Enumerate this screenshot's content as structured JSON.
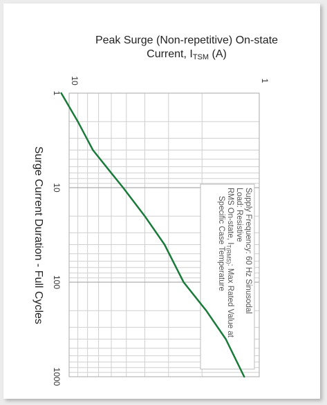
{
  "chart_data": {
    "type": "line",
    "title_line1": "Peak Surge (Non-repetitive) On-state",
    "title_line2_main": "Current, I",
    "title_line2_sub": "TSM",
    "title_line2_unit": " (A)",
    "ylabel": "Surge Current Duration - Full Cycles",
    "x_axis": {
      "scale": "log",
      "range": [
        1,
        10
      ],
      "ticks": [
        "1",
        "10"
      ]
    },
    "y_axis": {
      "scale": "log",
      "range": [
        1,
        1000
      ],
      "ticks": [
        "1",
        "10",
        "100",
        "1000"
      ]
    },
    "grid": true,
    "series": [
      {
        "color": "#1a7a3a",
        "x": [
          11.0,
          9.0,
          7.5,
          6.0,
          5.2,
          4.0,
          3.15,
          2.5,
          1.9,
          1.5,
          1.2
        ],
        "y": [
          1,
          2,
          4,
          7,
          10,
          20,
          40,
          100,
          200,
          400,
          1000
        ]
      }
    ],
    "annotation": [
      "Supply Frequency: 60 Hz Sinusodal",
      "Load: Resistive",
      "RMS On-state, I",
      "T(RMS)",
      ": Max Rated Value at",
      "Specific Case Temperature"
    ]
  }
}
